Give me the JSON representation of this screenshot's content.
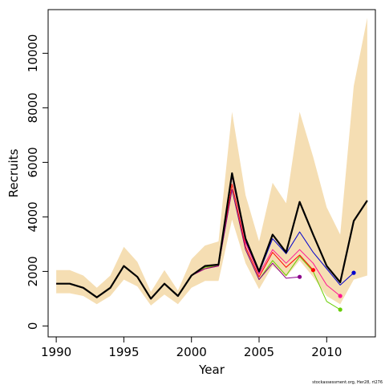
{
  "chart_data": {
    "type": "line",
    "title": "",
    "xlabel": "Year",
    "ylabel": "Recruits",
    "xlim": [
      1989.4,
      2013.6
    ],
    "ylim": [
      -400,
      11600
    ],
    "x_ticks": [
      1990,
      1995,
      2000,
      2005,
      2010
    ],
    "y_ticks": [
      0,
      2000,
      4000,
      6000,
      8000,
      10000
    ],
    "grid": false,
    "legend": "none",
    "credit": "stockassessment.org, Her28, rt276",
    "band": {
      "color": "#f5deb3",
      "x": [
        1990,
        1991,
        1992,
        1993,
        1994,
        1995,
        1996,
        1997,
        1998,
        1999,
        2000,
        2001,
        2002,
        2003,
        2004,
        2005,
        2006,
        2007,
        2008,
        2009,
        2010,
        2011,
        2012,
        2013
      ],
      "lower": [
        1200,
        1200,
        1100,
        800,
        1100,
        1700,
        1450,
        750,
        1150,
        800,
        1400,
        1650,
        1650,
        3900,
        2300,
        1350,
        2200,
        1800,
        2400,
        1800,
        1100,
        800,
        1700,
        1850
      ],
      "upper": [
        2050,
        2050,
        1850,
        1400,
        1850,
        2900,
        2350,
        1250,
        2050,
        1300,
        2450,
        2950,
        3100,
        7850,
        4800,
        3100,
        5250,
        4500,
        7850,
        6200,
        4350,
        3350,
        8800,
        11300
      ]
    },
    "series": [
      {
        "color": "#000000",
        "width": 2.2,
        "marker": false,
        "x": [
          1990,
          1991,
          1992,
          1993,
          1994,
          1995,
          1996,
          1997,
          1998,
          1999,
          2000,
          2001,
          2002,
          2003,
          2004,
          2005,
          2006,
          2007,
          2008,
          2009,
          2010,
          2011,
          2012,
          2013
        ],
        "values": [
          1550,
          1550,
          1400,
          1050,
          1400,
          2200,
          1800,
          1000,
          1550,
          1100,
          1850,
          2200,
          2250,
          5600,
          3200,
          2000,
          3350,
          2700,
          4550,
          3350,
          2200,
          1600,
          3850,
          4600
        ]
      },
      {
        "color": "#0000cd",
        "width": 1,
        "marker": true,
        "x": [
          1990,
          1991,
          1992,
          1993,
          1994,
          1995,
          1996,
          1997,
          1998,
          1999,
          2000,
          2001,
          2002,
          2003,
          2004,
          2005,
          2006,
          2007,
          2008,
          2009,
          2010,
          2011,
          2012
        ],
        "values": [
          1550,
          1550,
          1400,
          1050,
          1400,
          2200,
          1800,
          1000,
          1550,
          1100,
          1850,
          2200,
          2250,
          5500,
          3100,
          1950,
          3200,
          2650,
          3450,
          2700,
          2100,
          1500,
          1950
        ]
      },
      {
        "color": "#ff1493",
        "width": 1,
        "marker": true,
        "x": [
          1990,
          1991,
          1992,
          1993,
          1994,
          1995,
          1996,
          1997,
          1998,
          1999,
          2000,
          2001,
          2002,
          2003,
          2004,
          2005,
          2006,
          2007,
          2008,
          2009,
          2010,
          2011
        ],
        "values": [
          1550,
          1550,
          1400,
          1050,
          1400,
          2200,
          1800,
          1000,
          1550,
          1100,
          1850,
          2200,
          2250,
          5500,
          3050,
          1900,
          2800,
          2300,
          2800,
          2300,
          1500,
          1100
        ]
      },
      {
        "color": "#66cd00",
        "width": 1,
        "marker": true,
        "x": [
          1990,
          1991,
          1992,
          1993,
          1994,
          1995,
          1996,
          1997,
          1998,
          1999,
          2000,
          2001,
          2002,
          2003,
          2004,
          2005,
          2006,
          2007,
          2008,
          2009,
          2010,
          2011
        ],
        "values": [
          1550,
          1550,
          1400,
          1050,
          1400,
          2200,
          1800,
          1000,
          1550,
          1100,
          1850,
          2150,
          2200,
          5000,
          2800,
          1700,
          2400,
          1850,
          2550,
          2000,
          900,
          600
        ]
      },
      {
        "color": "#ff0000",
        "width": 1,
        "marker": true,
        "x": [
          1990,
          1991,
          1992,
          1993,
          1994,
          1995,
          1996,
          1997,
          1998,
          1999,
          2000,
          2001,
          2002,
          2003,
          2004,
          2005,
          2006,
          2007,
          2008,
          2009
        ],
        "values": [
          1550,
          1550,
          1400,
          1050,
          1400,
          2200,
          1800,
          1000,
          1550,
          1100,
          1850,
          2100,
          2200,
          5200,
          2900,
          1800,
          2700,
          2150,
          2600,
          2050
        ]
      },
      {
        "color": "#8b008b",
        "width": 1,
        "marker": true,
        "x": [
          1990,
          1991,
          1992,
          1993,
          1994,
          1995,
          1996,
          1997,
          1998,
          1999,
          2000,
          2001,
          2002,
          2003,
          2004,
          2005,
          2006,
          2007,
          2008
        ],
        "values": [
          1550,
          1550,
          1400,
          1050,
          1400,
          2200,
          1800,
          1000,
          1550,
          1100,
          1850,
          2100,
          2200,
          5000,
          2800,
          1700,
          2300,
          1750,
          1800
        ]
      }
    ]
  }
}
